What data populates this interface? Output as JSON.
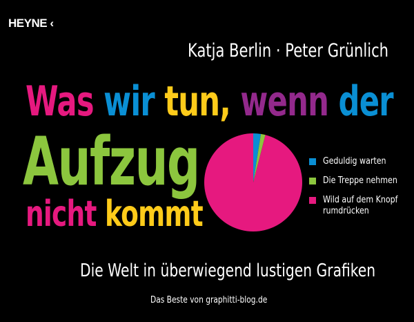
{
  "publisher": {
    "name": "HEYNE",
    "mark": "‹"
  },
  "authors": "Katja Berlin · Peter Grünlich",
  "title": {
    "words": [
      {
        "text": "Was",
        "color": "#e6197f"
      },
      {
        "text": "wir",
        "color": "#0a8fd4"
      },
      {
        "text": "tun,",
        "color": "#fecb1a"
      },
      {
        "text": "wenn",
        "color": "#93298c"
      },
      {
        "text": "der",
        "color": "#0a8fd4"
      },
      {
        "text": "Aufzug",
        "color": "#8cc63e"
      },
      {
        "text": "nicht",
        "color": "#e6197f"
      },
      {
        "text": "kommt",
        "color": "#fecb1a"
      }
    ]
  },
  "subtitle": "Die Welt in überwiegend lustigen Grafiken",
  "footer": "Das Beste von graphitti-blog.de",
  "chart_data": {
    "type": "pie",
    "categories": [
      "Geduldig warten",
      "Die Treppe nehmen",
      "Wild auf dem Knopf rumdrücken"
    ],
    "legend_lines": [
      [
        "Geduldig warten"
      ],
      [
        "Die Treppe nehmen"
      ],
      [
        "Wild auf dem Knopf",
        "rumdrücken"
      ]
    ],
    "values": [
      2.5,
      1.5,
      96
    ],
    "colors": [
      "#0a8fd4",
      "#8cc63e",
      "#e6197f"
    ],
    "legend": "right"
  }
}
